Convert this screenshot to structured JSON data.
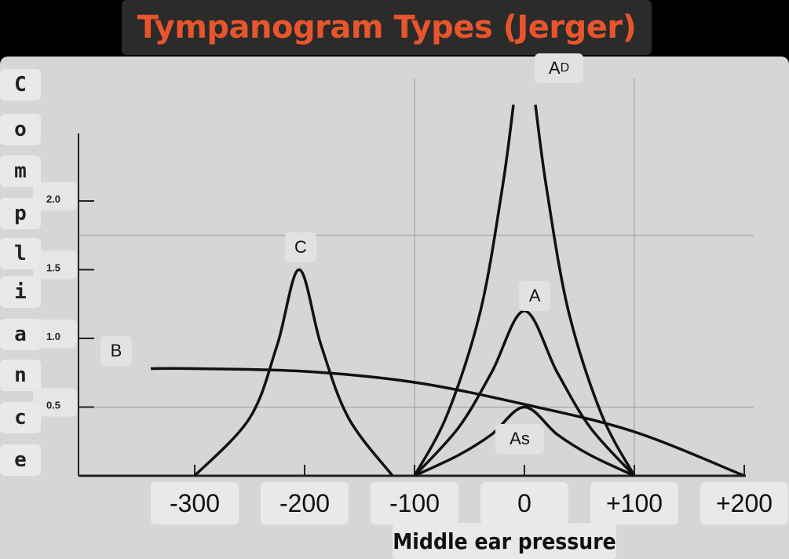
{
  "chart_data": {
    "type": "line",
    "title": "Tympanogram Types (Jerger)",
    "xlabel": "Middle ear pressure",
    "ylabel": "Compliance",
    "xlim": [
      -350,
      200
    ],
    "ylim": [
      0,
      2.5
    ],
    "x_ticks": [
      "-300",
      "-200",
      "-100",
      "0",
      "+100",
      "+200"
    ],
    "x_tick_values": [
      -300,
      -200,
      -100,
      0,
      100,
      200
    ],
    "y_ticks": [
      "0.5",
      "1.0",
      "1.5",
      "2.0"
    ],
    "y_tick_values": [
      0.5,
      1.0,
      1.5,
      2.0
    ],
    "grid": "partial",
    "series": [
      {
        "name": "C",
        "label": "C",
        "x": [
          -300,
          -250,
          -225,
          -205,
          -185,
          -160,
          -120
        ],
        "y": [
          0,
          0.42,
          0.95,
          1.5,
          0.95,
          0.42,
          0
        ]
      },
      {
        "name": "B",
        "label": "B",
        "x": [
          -340,
          -300,
          -200,
          -100,
          0,
          100,
          200
        ],
        "y": [
          0.78,
          0.78,
          0.76,
          0.68,
          0.52,
          0.32,
          0
        ]
      },
      {
        "name": "A",
        "label": "A",
        "x": [
          -100,
          -60,
          -30,
          0,
          30,
          60,
          100
        ],
        "y": [
          0,
          0.35,
          0.75,
          1.2,
          0.75,
          0.35,
          0
        ]
      },
      {
        "name": "As",
        "label": "As",
        "x": [
          -100,
          -60,
          -30,
          0,
          30,
          60,
          100
        ],
        "y": [
          0,
          0.15,
          0.3,
          0.5,
          0.3,
          0.15,
          0
        ]
      },
      {
        "name": "AD",
        "label": "AD",
        "x": [
          -100,
          -70,
          -40,
          -20,
          -10,
          10,
          20,
          40,
          70,
          100
        ],
        "y": [
          0,
          0.45,
          1.2,
          2.1,
          2.7,
          2.7,
          2.1,
          1.2,
          0.45,
          0
        ]
      }
    ],
    "colors": {
      "curve": "#111111",
      "grid": "#9a9a9a",
      "axis": "#222222",
      "title": "#e8552c"
    }
  },
  "y_axis_letters": [
    "C",
    "o",
    "m",
    "p",
    "l",
    "i",
    "a",
    "n",
    "c",
    "e"
  ]
}
